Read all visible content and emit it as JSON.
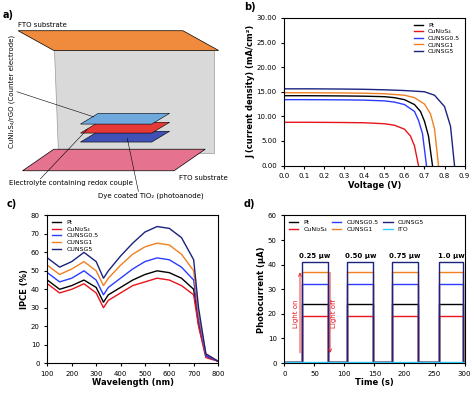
{
  "diagram": {
    "label": "a)",
    "top_plate": "FTO substrate",
    "counter_electrode": "CuNi₂S₄/rGO (Counter electrode)",
    "electrolyte": "Electrolyte containing redox couple",
    "photoanode": "Dye coated TiO₂ (photoanode)",
    "bottom_plate": "FTO substrate"
  },
  "chart_data": [
    {
      "type": "line",
      "label": "b)",
      "x_label": "Voltage (V)",
      "y_label": "J (current density) (mA/cm²)",
      "xlim": [
        0,
        0.9
      ],
      "xticks": [
        0.0,
        0.1,
        0.2,
        0.3,
        0.4,
        0.5,
        0.6,
        0.7,
        0.8,
        0.9
      ],
      "ylim": [
        0,
        30
      ],
      "yticks": [
        {
          "value": 0,
          "label": "0.00"
        },
        {
          "value": 5,
          "label": "5.00"
        },
        {
          "value": 10,
          "label": "10.00"
        },
        {
          "value": 15,
          "label": "15.00"
        },
        {
          "value": 20,
          "label": "20.00"
        },
        {
          "value": 25,
          "label": "25.00"
        },
        {
          "value": 30,
          "label": "30.00"
        }
      ],
      "legend": "upper right",
      "series": [
        {
          "name": "Pt",
          "color": "#000000",
          "x": [
            0,
            0.1,
            0.2,
            0.3,
            0.4,
            0.5,
            0.55,
            0.6,
            0.65,
            0.68,
            0.7,
            0.72,
            0.74
          ],
          "values": [
            14.2,
            14.2,
            14.18,
            14.15,
            14.1,
            14.0,
            13.8,
            13.4,
            12.4,
            11.0,
            9.0,
            6.0,
            0
          ]
        },
        {
          "name": "CuNi₂S₄",
          "color": "#e8141c",
          "x": [
            0,
            0.1,
            0.2,
            0.3,
            0.4,
            0.5,
            0.55,
            0.6,
            0.63,
            0.65,
            0.67
          ],
          "values": [
            8.8,
            8.8,
            8.78,
            8.75,
            8.7,
            8.5,
            8.2,
            7.4,
            6.0,
            4.0,
            0
          ]
        },
        {
          "name": "CUNSG0.5",
          "color": "#2b3cff",
          "x": [
            0,
            0.1,
            0.2,
            0.3,
            0.4,
            0.5,
            0.55,
            0.6,
            0.65,
            0.67,
            0.69,
            0.71
          ],
          "values": [
            13.4,
            13.4,
            13.38,
            13.35,
            13.3,
            13.15,
            12.9,
            12.4,
            11.0,
            9.2,
            6.5,
            0
          ]
        },
        {
          "name": "CUNSG1",
          "color": "#f08020",
          "x": [
            0,
            0.1,
            0.2,
            0.3,
            0.4,
            0.5,
            0.6,
            0.65,
            0.7,
            0.73,
            0.75,
            0.77
          ],
          "values": [
            14.8,
            14.8,
            14.78,
            14.75,
            14.7,
            14.6,
            14.3,
            13.8,
            12.5,
            10.5,
            7.5,
            0
          ]
        },
        {
          "name": "CUNSG5",
          "color": "#1a237e",
          "x": [
            0,
            0.1,
            0.2,
            0.3,
            0.4,
            0.5,
            0.6,
            0.7,
            0.75,
            0.8,
            0.83,
            0.85
          ],
          "values": [
            15.6,
            15.6,
            15.58,
            15.55,
            15.5,
            15.4,
            15.25,
            15.0,
            14.3,
            12.0,
            8.0,
            0
          ]
        }
      ]
    },
    {
      "type": "line",
      "label": "c)",
      "x_label": "Wavelength (nm)",
      "y_label": "IPCE (%)",
      "xlim": [
        100,
        800
      ],
      "xticks": [
        100,
        200,
        300,
        400,
        500,
        600,
        700,
        800
      ],
      "ylim": [
        0,
        80
      ],
      "yticks": [
        0,
        10,
        20,
        30,
        40,
        50,
        60,
        70,
        80
      ],
      "legend": "upper left",
      "x": [
        100,
        150,
        200,
        250,
        300,
        330,
        350,
        400,
        450,
        500,
        550,
        600,
        650,
        700,
        720,
        750,
        800
      ],
      "series": [
        {
          "name": "Pt",
          "color": "#000000",
          "values": [
            45,
            40,
            42,
            45,
            41,
            33,
            37,
            41,
            45,
            48,
            50,
            49,
            46,
            40,
            21,
            4,
            1
          ]
        },
        {
          "name": "CuNi₂S₄",
          "color": "#e8141c",
          "values": [
            43,
            38,
            40,
            43,
            38,
            30,
            34,
            38,
            42,
            44,
            46,
            45,
            42,
            37,
            20,
            3,
            1
          ]
        },
        {
          "name": "CUNSG0.5",
          "color": "#2b3cff",
          "values": [
            49,
            44,
            46,
            50,
            45,
            37,
            41,
            46,
            51,
            55,
            57,
            56,
            52,
            45,
            24,
            4,
            1
          ]
        },
        {
          "name": "CUNSG1",
          "color": "#f08020",
          "values": [
            53,
            48,
            51,
            55,
            50,
            42,
            46,
            53,
            59,
            63,
            65,
            64,
            59,
            50,
            27,
            5,
            1
          ]
        },
        {
          "name": "CUNSG5",
          "color": "#1a237e",
          "values": [
            57,
            52,
            55,
            60,
            55,
            46,
            50,
            58,
            65,
            71,
            74,
            73,
            68,
            56,
            30,
            5,
            1
          ]
        }
      ]
    },
    {
      "type": "line",
      "label": "d)",
      "x_label": "Time (s)",
      "y_label": "Photocurrent (μA)",
      "xlim": [
        0,
        300
      ],
      "xticks": [
        0,
        50,
        100,
        150,
        200,
        250,
        300
      ],
      "ylim": [
        0,
        60
      ],
      "yticks": [
        0,
        10,
        20,
        30,
        40,
        50,
        60
      ],
      "legend": "upper left",
      "pulses": [
        {
          "start": 30,
          "end": 72,
          "label": "0.25 μw"
        },
        {
          "start": 105,
          "end": 148,
          "label": "0.50 μw"
        },
        {
          "start": 180,
          "end": 222,
          "label": "0.75 μw"
        },
        {
          "start": 258,
          "end": 298,
          "label": "1.0 μw"
        }
      ],
      "annotations": [
        "Light on",
        "Light off"
      ],
      "x": [
        0,
        30,
        30,
        72,
        72,
        105,
        105,
        148,
        148,
        180,
        180,
        222,
        222,
        258,
        258,
        298,
        298,
        300
      ],
      "series": [
        {
          "name": "Pt",
          "color": "#000000",
          "values": [
            0.5,
            0.5,
            24,
            24,
            0.5,
            0.5,
            24,
            24,
            0.5,
            0.5,
            24,
            24,
            0.5,
            0.5,
            24,
            24,
            0.5,
            0.5
          ]
        },
        {
          "name": "CuNi₂S₄",
          "color": "#e8141c",
          "values": [
            0.5,
            0.5,
            19,
            19,
            0.5,
            0.5,
            19,
            19,
            0.5,
            0.5,
            19,
            19,
            0.5,
            0.5,
            19,
            19,
            0.5,
            0.5
          ]
        },
        {
          "name": "CUNSG0.5",
          "color": "#2b3cff",
          "values": [
            0.5,
            0.5,
            32,
            32,
            0.5,
            0.5,
            32,
            32,
            0.5,
            0.5,
            32,
            32,
            0.5,
            0.5,
            32,
            32,
            0.5,
            0.5
          ]
        },
        {
          "name": "CUNSG1",
          "color": "#f08020",
          "values": [
            0.5,
            0.5,
            37,
            37,
            0.5,
            0.5,
            37,
            37,
            0.5,
            0.5,
            37,
            37,
            0.5,
            0.5,
            37,
            37,
            0.5,
            0.5
          ]
        },
        {
          "name": "CUNSG5",
          "color": "#1a237e",
          "values": [
            0.5,
            0.5,
            41,
            41,
            0.5,
            0.5,
            41,
            41,
            0.5,
            0.5,
            41,
            41,
            0.5,
            0.5,
            41,
            41,
            0.5,
            0.5
          ]
        },
        {
          "name": "ITO",
          "color": "#33ccff",
          "values": [
            0.3,
            0.3,
            0.6,
            0.6,
            0.3,
            0.3,
            0.6,
            0.6,
            0.3,
            0.3,
            0.6,
            0.6,
            0.3,
            0.3,
            0.6,
            0.6,
            0.3,
            0.3
          ]
        }
      ]
    }
  ]
}
